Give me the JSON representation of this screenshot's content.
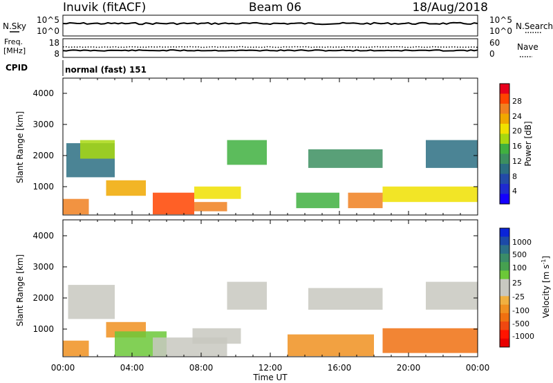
{
  "header": {
    "station": "Inuvik (fitACF)",
    "beam": "Beam 06",
    "date": "18/Aug/2018"
  },
  "noise_panel": {
    "left_label": "N.Sky",
    "left_ticks": [
      "10^5",
      "10^0"
    ],
    "right_ticks": [
      "10^5",
      "10^0"
    ],
    "right_label": "N.Search"
  },
  "freq_panel": {
    "left_label_1": "Freq.",
    "left_label_2": "[MHz]",
    "left_ticks": [
      "18",
      "8"
    ],
    "right_ticks": [
      "60",
      "0"
    ],
    "right_label": "Nave"
  },
  "cpid": {
    "label": "CPID",
    "value": "normal (fast) 151"
  },
  "power_panel": {
    "ylabel": "Slant Range [km]",
    "yticks": [
      "4000",
      "3000",
      "2000",
      "1000"
    ],
    "colorbar_label": "Power [dB]",
    "colorbar_ticks": [
      "28",
      "24",
      "20",
      "16",
      "12",
      "8",
      "4"
    ],
    "colorbar_colors": [
      "#e8001c",
      "#ff4400",
      "#f08020",
      "#f0a800",
      "#f0e000",
      "#a8d810",
      "#40b040",
      "#3c8f60",
      "#2b6e82",
      "#234aa8",
      "#1f2ad0",
      "#1400ff"
    ]
  },
  "velocity_panel": {
    "ylabel": "Slant Range [km]",
    "yticks": [
      "4000",
      "3000",
      "2000",
      "1000"
    ],
    "colorbar_label": "Velocity [m s",
    "colorbar_label_sup": "-1",
    "colorbar_label_end": "]",
    "colorbar_ticks": [
      "1000",
      "500",
      "100",
      "25",
      "-25",
      "-100",
      "-500",
      "-1000"
    ],
    "colorbar_colors": [
      "#0a24d8",
      "#1c4aa8",
      "#2b7088",
      "#3a8c68",
      "#46a050",
      "#6cc838",
      "#c8c8c0",
      "#c8c8c0",
      "#f0b040",
      "#f09020",
      "#f07010",
      "#f04810",
      "#ff1400",
      "#e80000"
    ]
  },
  "xaxis": {
    "ticks": [
      "00:00",
      "04:00",
      "08:00",
      "12:00",
      "16:00",
      "20:00",
      "00:00"
    ],
    "label": "Time UT"
  },
  "chart_data": [
    {
      "type": "heatmap",
      "title": "Power",
      "xlabel": "Time UT",
      "ylabel": "Slant Range [km]",
      "xlim_hours": [
        0,
        24
      ],
      "ylim_km": [
        180,
        4600
      ],
      "colorbar": {
        "label": "Power [dB]",
        "ticks": [
          4,
          8,
          12,
          16,
          20,
          24,
          28
        ],
        "range": [
          0,
          32
        ]
      },
      "regions": [
        {
          "t0": 0.0,
          "t1": 1.5,
          "r0": 200,
          "r1": 700,
          "value": 26
        },
        {
          "t0": 0.2,
          "t1": 3.0,
          "r0": 1400,
          "r1": 2500,
          "value": 10
        },
        {
          "t0": 1.0,
          "t1": 3.0,
          "r0": 2000,
          "r1": 2600,
          "value": 18
        },
        {
          "t0": 2.5,
          "t1": 4.8,
          "r0": 800,
          "r1": 1300,
          "value": 24
        },
        {
          "t0": 5.2,
          "t1": 7.6,
          "r0": 200,
          "r1": 900,
          "value": 30
        },
        {
          "t0": 7.6,
          "t1": 9.5,
          "r0": 300,
          "r1": 600,
          "value": 26
        },
        {
          "t0": 7.6,
          "t1": 10.3,
          "r0": 700,
          "r1": 1100,
          "value": 20
        },
        {
          "t0": 9.5,
          "t1": 11.8,
          "r0": 1800,
          "r1": 2600,
          "value": 14
        },
        {
          "t0": 13.5,
          "t1": 16.0,
          "r0": 400,
          "r1": 900,
          "value": 14
        },
        {
          "t0": 14.2,
          "t1": 18.5,
          "r0": 1700,
          "r1": 2300,
          "value": 12
        },
        {
          "t0": 16.5,
          "t1": 18.5,
          "r0": 400,
          "r1": 900,
          "value": 26
        },
        {
          "t0": 18.5,
          "t1": 24.0,
          "r0": 600,
          "r1": 1100,
          "value": 20
        },
        {
          "t0": 21.0,
          "t1": 24.0,
          "r0": 1700,
          "r1": 2600,
          "value": 10
        }
      ]
    },
    {
      "type": "heatmap",
      "title": "Velocity",
      "xlabel": "Time UT",
      "ylabel": "Slant Range [km]",
      "xlim_hours": [
        0,
        24
      ],
      "ylim_km": [
        180,
        4600
      ],
      "colorbar": {
        "label": "Velocity [m s-1]",
        "ticks": [
          1000,
          500,
          100,
          25,
          -25,
          -100,
          -500,
          -1000
        ],
        "range": [
          -1200,
          1200
        ]
      },
      "regions": [
        {
          "t0": 0.0,
          "t1": 1.5,
          "r0": 200,
          "r1": 700,
          "value": -200
        },
        {
          "t0": 0.3,
          "t1": 3.0,
          "r0": 1400,
          "r1": 2500,
          "value": 0
        },
        {
          "t0": 2.5,
          "t1": 4.8,
          "r0": 800,
          "r1": 1300,
          "value": -300
        },
        {
          "t0": 3.0,
          "t1": 6.0,
          "r0": 200,
          "r1": 1000,
          "value": 150
        },
        {
          "t0": 5.2,
          "t1": 9.5,
          "r0": 200,
          "r1": 800,
          "value": 0
        },
        {
          "t0": 7.5,
          "t1": 10.3,
          "r0": 600,
          "r1": 1100,
          "value": 60
        },
        {
          "t0": 9.5,
          "t1": 11.8,
          "r0": 1700,
          "r1": 2600,
          "value": 0
        },
        {
          "t0": 13.0,
          "t1": 18.0,
          "r0": 200,
          "r1": 900,
          "value": -300
        },
        {
          "t0": 14.2,
          "t1": 18.5,
          "r0": 1700,
          "r1": 2400,
          "value": 0
        },
        {
          "t0": 18.5,
          "t1": 24.0,
          "r0": 300,
          "r1": 1100,
          "value": -350
        },
        {
          "t0": 21.0,
          "t1": 24.0,
          "r0": 1700,
          "r1": 2600,
          "value": 0
        }
      ]
    }
  ]
}
